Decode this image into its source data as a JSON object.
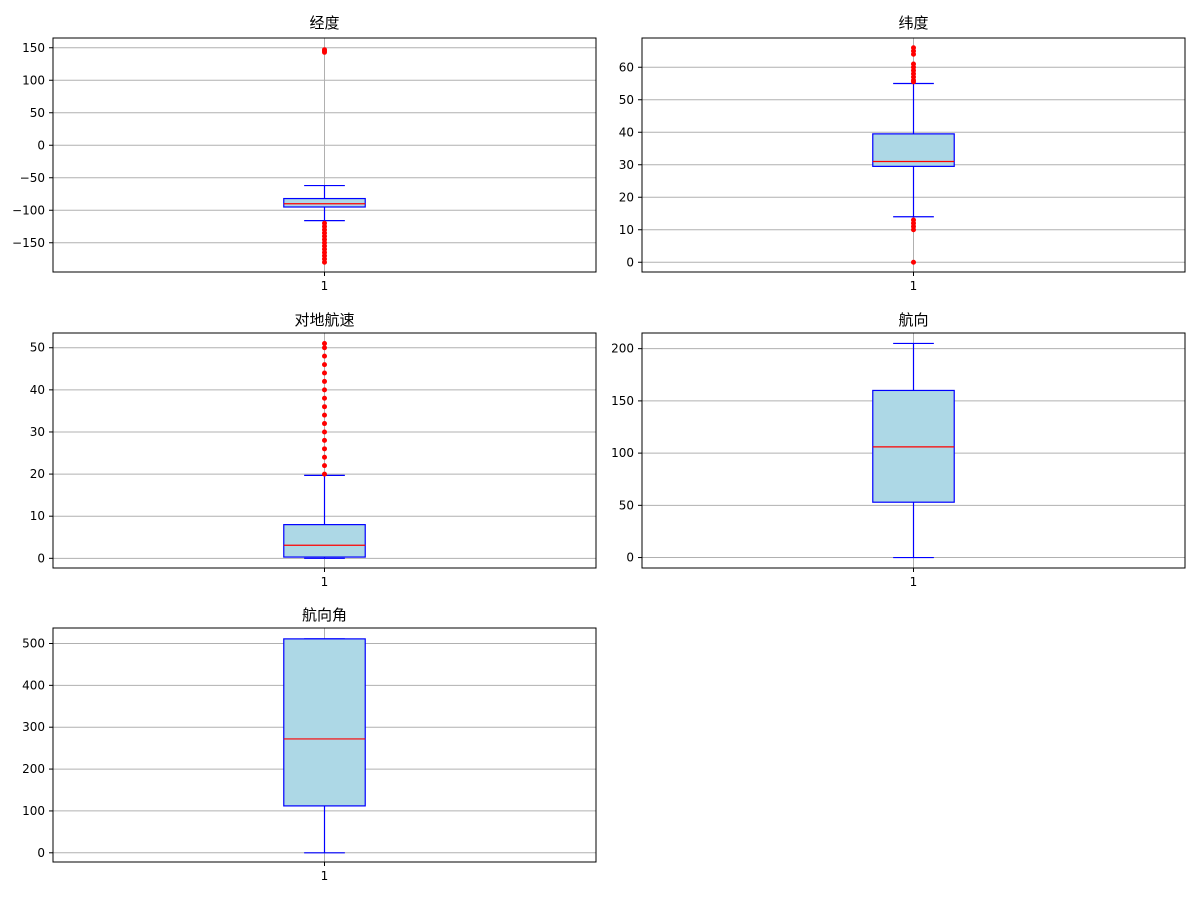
{
  "figure": {
    "background": "#ffffff"
  },
  "style": {
    "box_fill": "#add8e6",
    "box_edge": "#0000ff",
    "whisker": "#0000ff",
    "median": "#ff0000",
    "flier": "#ff0000",
    "grid": "#b0b0b0"
  },
  "chart_data": [
    {
      "type": "boxplot",
      "title": "经度",
      "categories": [
        "1"
      ],
      "grid": true,
      "ylim": [
        -195,
        165
      ],
      "yticks": [
        -150,
        -100,
        -50,
        0,
        50,
        100,
        150
      ],
      "box": {
        "whislo": -116,
        "q1": -95,
        "median": -90,
        "q3": -82,
        "whishi": -62
      },
      "fliers": [
        -120,
        -125,
        -130,
        -135,
        -140,
        -145,
        -150,
        -155,
        -160,
        -165,
        -170,
        -175,
        -180,
        143,
        145,
        147
      ]
    },
    {
      "type": "boxplot",
      "title": "纬度",
      "categories": [
        "1"
      ],
      "grid": true,
      "ylim": [
        -3,
        69
      ],
      "yticks": [
        0,
        10,
        20,
        30,
        40,
        50,
        60
      ],
      "box": {
        "whislo": 14,
        "q1": 29.5,
        "median": 31,
        "q3": 39.5,
        "whishi": 55
      },
      "fliers": [
        0,
        10,
        11,
        12,
        13,
        55.5,
        56,
        57,
        58,
        59,
        60,
        61,
        64,
        65,
        66
      ]
    },
    {
      "type": "boxplot",
      "title": "对地航速",
      "categories": [
        "1"
      ],
      "grid": true,
      "ylim": [
        -2.3,
        53.5
      ],
      "yticks": [
        0,
        10,
        20,
        30,
        40,
        50
      ],
      "box": {
        "whislo": 0,
        "q1": 0.3,
        "median": 3.1,
        "q3": 8,
        "whishi": 19.7
      },
      "fliers": [
        20,
        22,
        24,
        26,
        28,
        30,
        32,
        34,
        36,
        38,
        40,
        42,
        44,
        46,
        48,
        50,
        51
      ]
    },
    {
      "type": "boxplot",
      "title": "航向",
      "categories": [
        "1"
      ],
      "grid": true,
      "ylim": [
        -10,
        215
      ],
      "yticks": [
        0,
        50,
        100,
        150,
        200
      ],
      "box": {
        "whislo": 0,
        "q1": 53,
        "median": 106,
        "q3": 160,
        "whishi": 205
      },
      "fliers": []
    },
    {
      "type": "boxplot",
      "title": "航向角",
      "categories": [
        "1"
      ],
      "grid": true,
      "ylim": [
        -22,
        537
      ],
      "yticks": [
        0,
        100,
        200,
        300,
        400,
        500
      ],
      "box": {
        "whislo": 0,
        "q1": 112,
        "median": 272,
        "q3": 511,
        "whishi": 511
      },
      "fliers": []
    }
  ]
}
